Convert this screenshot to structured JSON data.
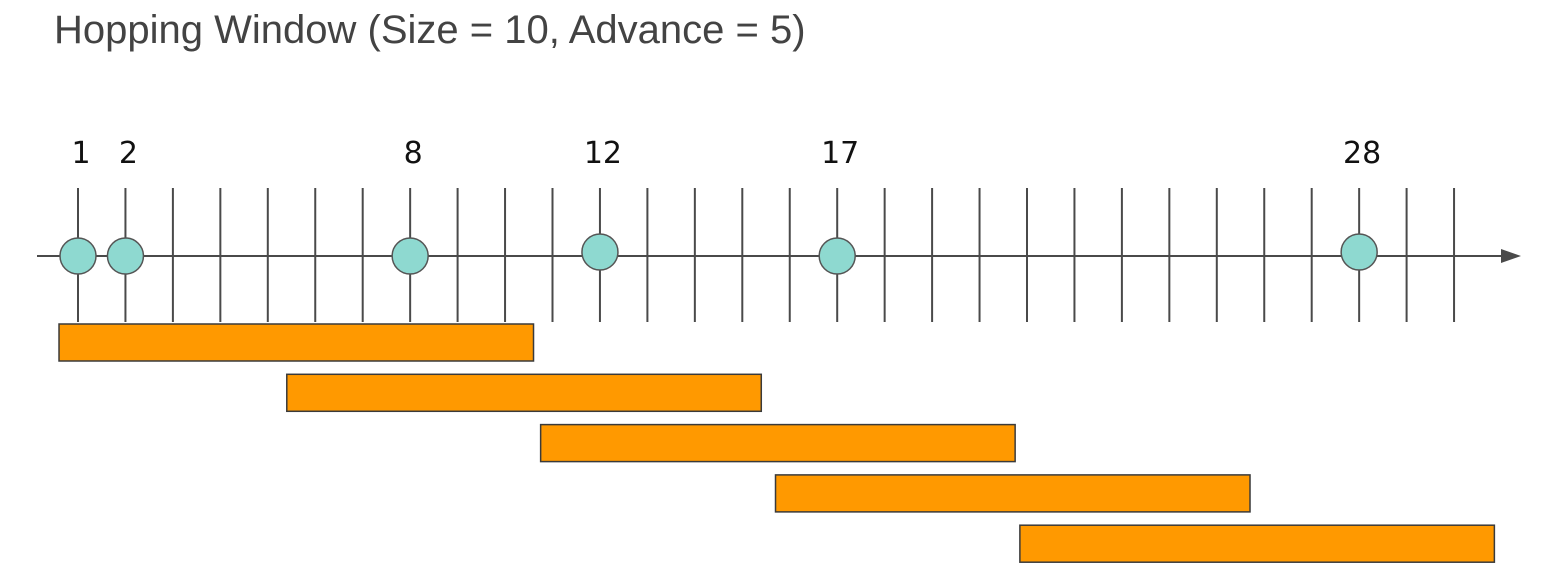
{
  "title": "Hopping Window (Size = 10, Advance = 5)",
  "timeline": {
    "tick_count": 30,
    "axis_color": "#4a4a4a",
    "event_color": "#8ed9d0",
    "event_stroke": "#555555"
  },
  "events": [
    {
      "time": 1,
      "label": "1"
    },
    {
      "time": 2,
      "label": "2"
    },
    {
      "time": 8,
      "label": "8"
    },
    {
      "time": 12,
      "label": "12"
    },
    {
      "time": 17,
      "label": "17"
    },
    {
      "time": 28,
      "label": "28"
    }
  ],
  "window_size": 10,
  "window_advance": 5,
  "windows": [
    {
      "start": 0.6,
      "end": 10.6
    },
    {
      "start": 5.4,
      "end": 15.4
    },
    {
      "start": 10.75,
      "end": 20.75
    },
    {
      "start": 15.7,
      "end": 25.7
    },
    {
      "start": 20.85,
      "end": 30.85
    }
  ],
  "window_fill": "#ff9900",
  "window_stroke": "#3a3a3a"
}
